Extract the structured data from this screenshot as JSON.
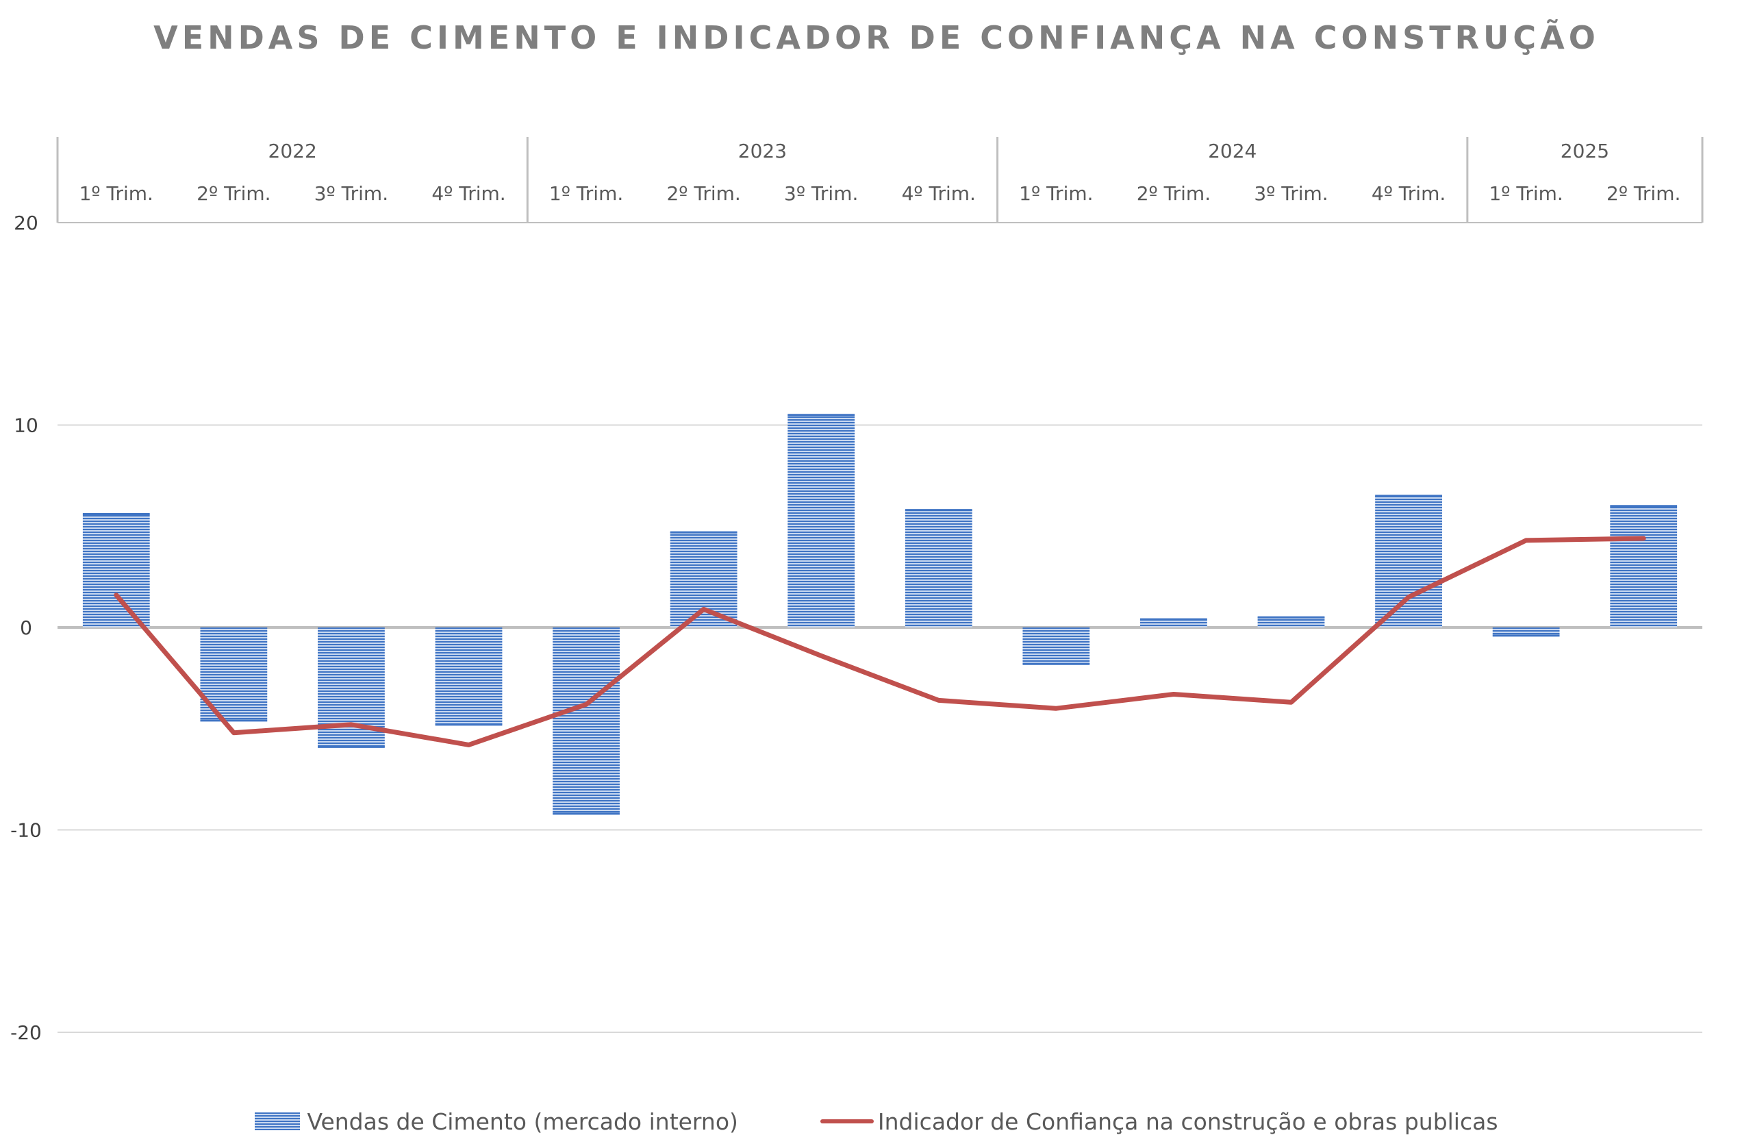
{
  "chart_data": {
    "type": "bar",
    "title": "VENDAS DE CIMENTO E INDICADOR DE CONFIANÇA NA CONSTRUÇÃO",
    "xlabel": "",
    "ylabel": "",
    "ylim": [
      -20,
      20
    ],
    "yticks": [
      20,
      10,
      0,
      -10,
      -20
    ],
    "year_groups": [
      {
        "label": "2022",
        "count": 4
      },
      {
        "label": "2023",
        "count": 4
      },
      {
        "label": "2024",
        "count": 4
      },
      {
        "label": "2025",
        "count": 2
      }
    ],
    "categories": [
      "1º Trim.",
      "2º Trim.",
      "3º Trim.",
      "4º Trim.",
      "1º Trim.",
      "2º Trim.",
      "3º Trim.",
      "4º Trim.",
      "1º Trim.",
      "2º Trim.",
      "3º Trim.",
      "4º Trim.",
      "1º Trim.",
      "2º Trim."
    ],
    "series": [
      {
        "name": "Vendas de Cimento (mercado interno)",
        "type": "bar",
        "color": "#4f81bd",
        "values": [
          5.6,
          -4.6,
          -5.9,
          -4.8,
          -9.2,
          4.7,
          10.5,
          5.8,
          -1.8,
          0.4,
          0.5,
          6.5,
          -0.4,
          6.0
        ]
      },
      {
        "name": "Indicador de Confiança na construção e obras publicas",
        "type": "line",
        "color": "#c0504d",
        "values": [
          1.6,
          -5.2,
          -4.8,
          -5.8,
          -3.8,
          0.9,
          -1.4,
          -3.6,
          -4.0,
          -3.3,
          -3.7,
          1.5,
          4.3,
          4.4
        ]
      }
    ],
    "grid": true,
    "legend_position": "bottom"
  }
}
